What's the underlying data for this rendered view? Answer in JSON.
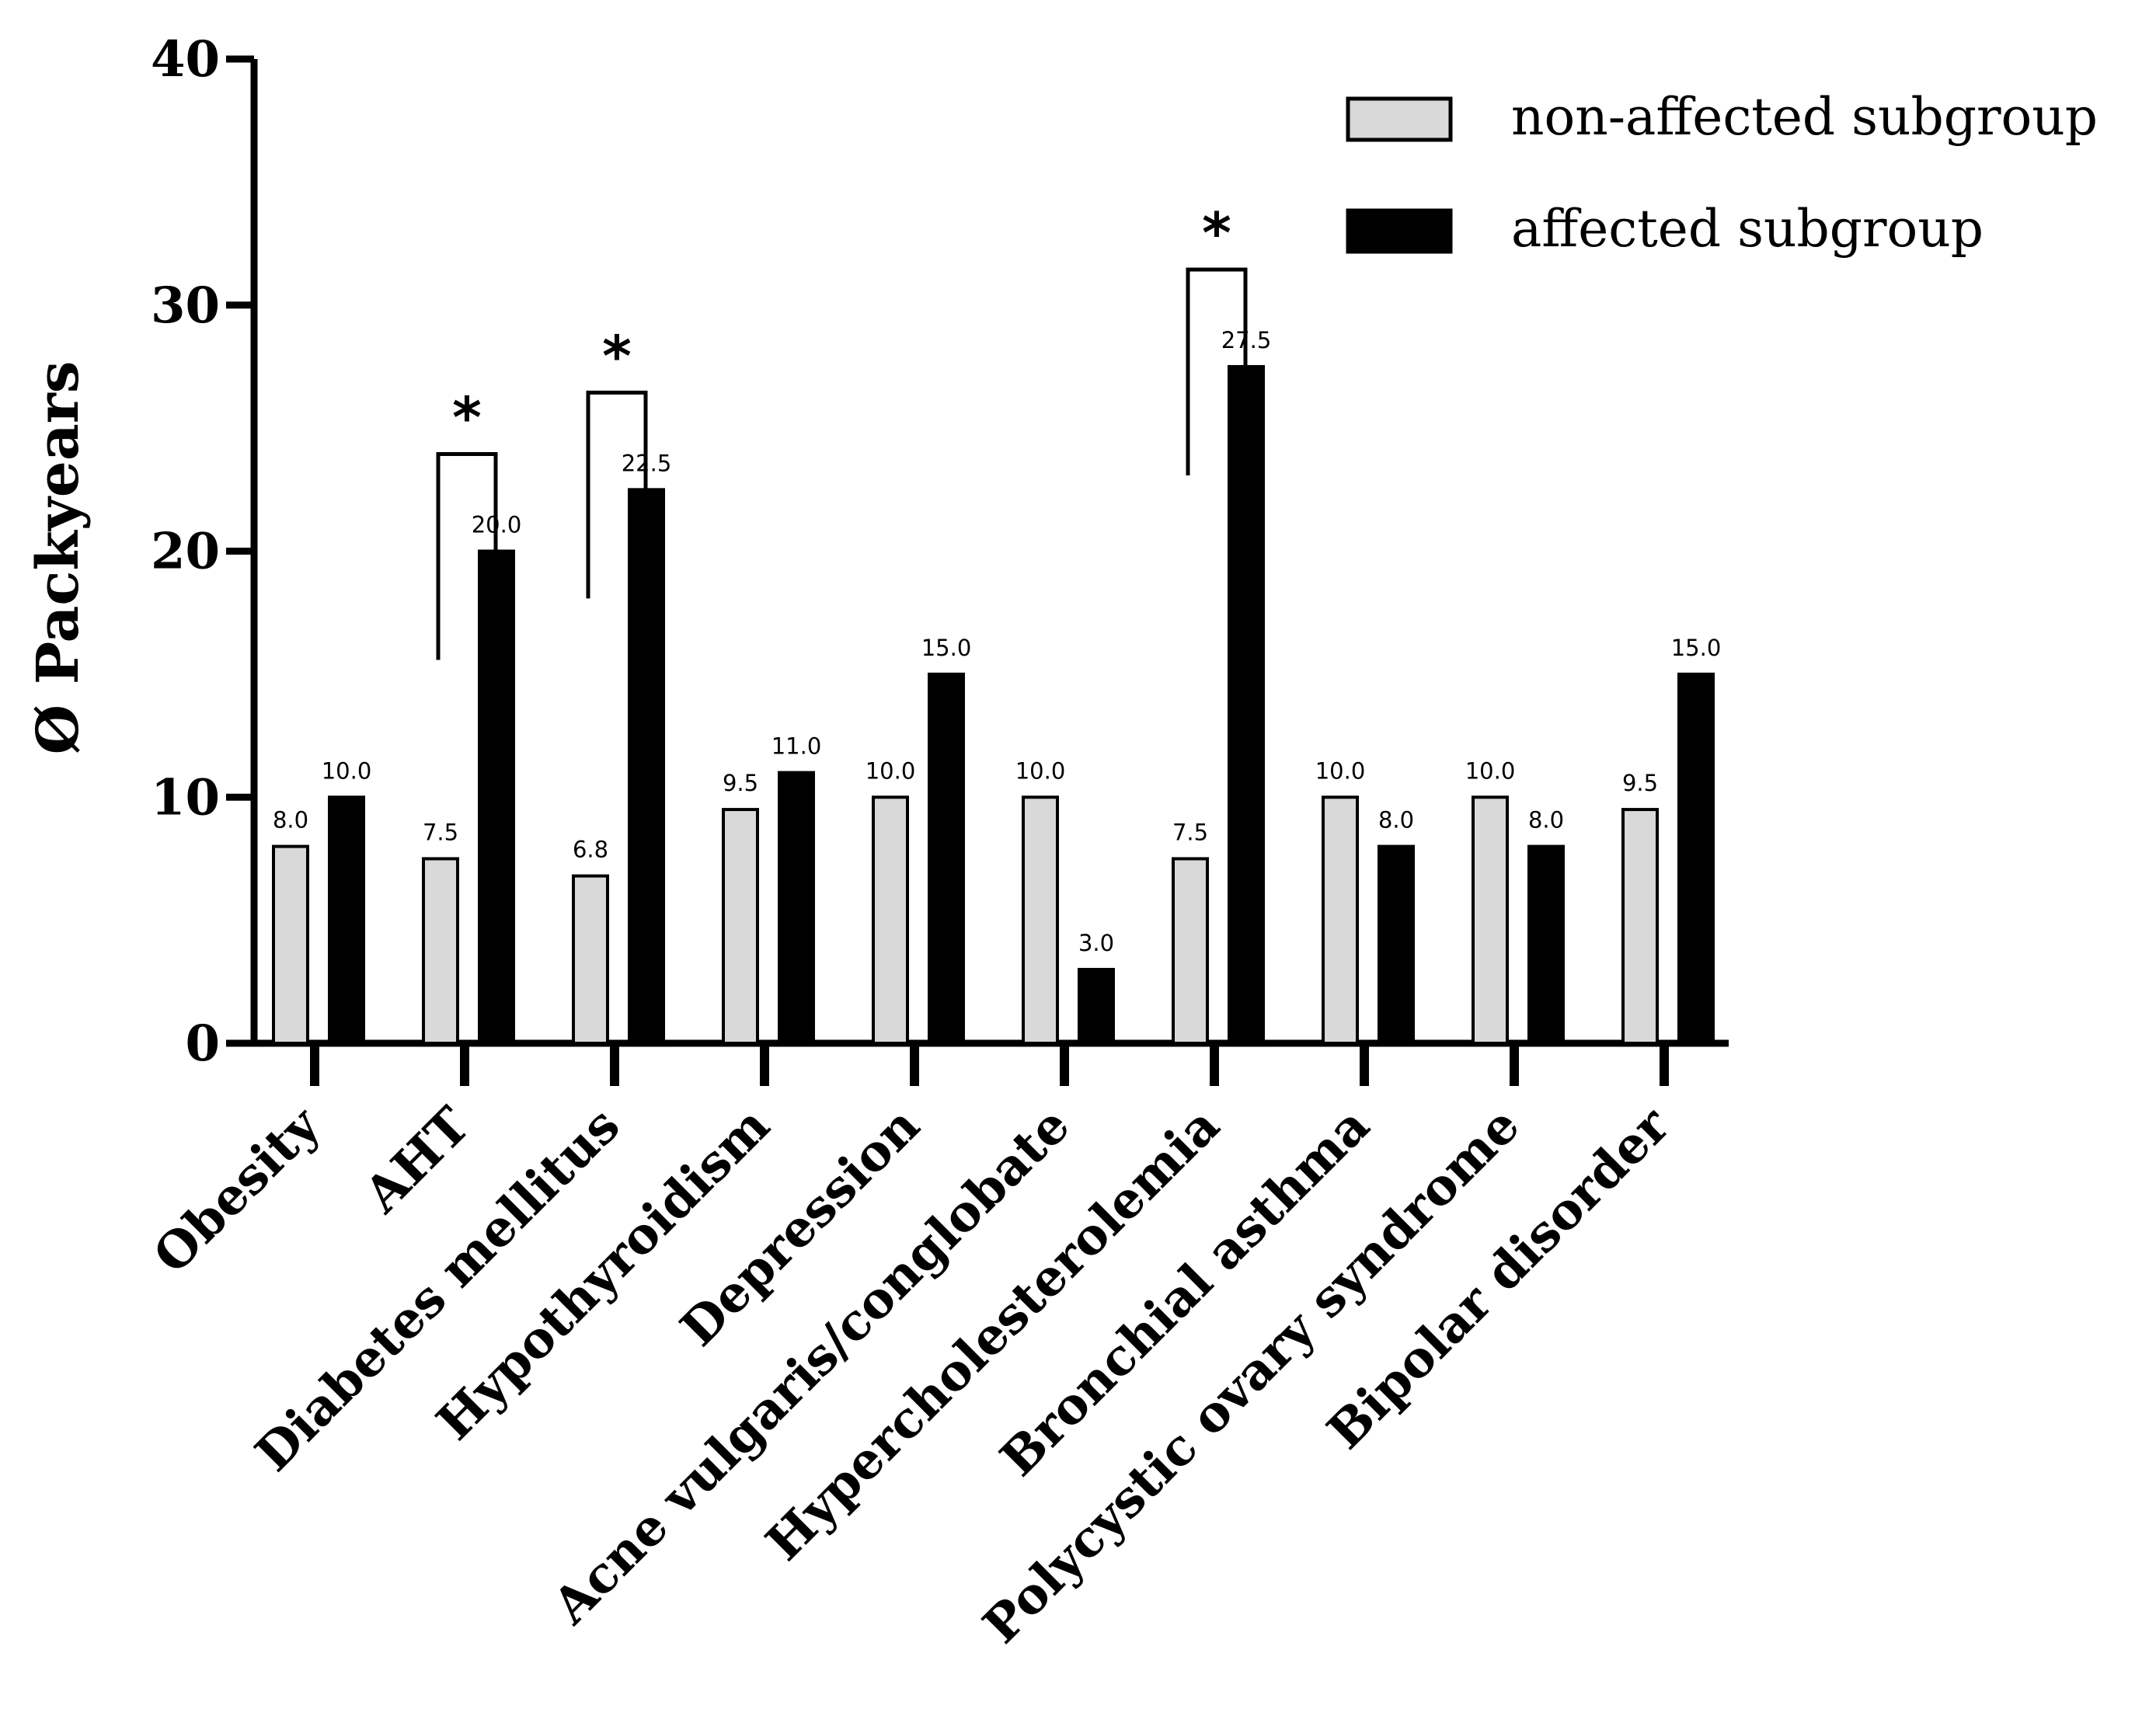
{
  "chart_data": {
    "type": "bar",
    "title": "",
    "xlabel": "",
    "ylabel": "Ø Packyears",
    "ylim": [
      0,
      40
    ],
    "yticks": [
      "0",
      "10",
      "20",
      "30",
      "40"
    ],
    "grid": false,
    "legend_position": "top-right",
    "categories": [
      "Obesity",
      "AHT",
      "Diabetes mellitus",
      "Hypothyroidism",
      "Depression",
      "Acne vulgaris/conglobate",
      "Hypercholesterolemia",
      "Bronchial asthma",
      "Polycystic ovary syndrome",
      "Bipolar disorder"
    ],
    "series": [
      {
        "name": "non-affected subgroup",
        "color": "#d9d9d9",
        "values": [
          8.0,
          7.5,
          6.8,
          9.5,
          10.0,
          10.0,
          7.5,
          10.0,
          10.0,
          9.5
        ],
        "labels": [
          "8.0",
          "7.5",
          "6.8",
          "9.5",
          "10.0",
          "10.0",
          "7.5",
          "10.0",
          "10.0",
          "9.5"
        ]
      },
      {
        "name": "affected subgroup",
        "color": "#000000",
        "values": [
          10.0,
          20.0,
          22.5,
          11.0,
          15.0,
          3.0,
          27.5,
          8.0,
          8.0,
          15.0
        ],
        "labels": [
          "10.0",
          "20.0",
          "22.5",
          "11.0",
          "15.0",
          "3.0",
          "27.5",
          "8.0",
          "8.0",
          "15.0"
        ]
      }
    ],
    "significance": [
      {
        "category_index": 1,
        "marker": "*"
      },
      {
        "category_index": 2,
        "marker": "*"
      },
      {
        "category_index": 6,
        "marker": "*"
      }
    ]
  }
}
